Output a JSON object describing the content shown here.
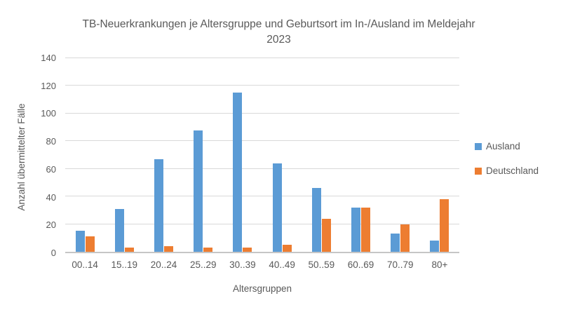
{
  "chart_data": {
    "type": "bar",
    "title": "TB-Neuerkrankungen je Altersgruppe und Geburtsort im In-/Ausland im Meldejahr 2023",
    "xlabel": "Altersgruppen",
    "ylabel": "Anzahl übermittelter Fälle",
    "ylim": [
      0,
      140
    ],
    "ytick_step": 20,
    "ytick_labels": [
      "0",
      "20",
      "40",
      "60",
      "80",
      "100",
      "120",
      "140"
    ],
    "grid": true,
    "legend_position": "right",
    "categories": [
      "00..14",
      "15..19",
      "20..24",
      "25..29",
      "30..39",
      "40..49",
      "50..59",
      "60..69",
      "70..79",
      "80+"
    ],
    "series": [
      {
        "name": "Ausland",
        "color": "#5B9BD5",
        "values": [
          15,
          31,
          67,
          88,
          115,
          64,
          46,
          32,
          13,
          8
        ]
      },
      {
        "name": "Deutschland",
        "color": "#ED7D31",
        "values": [
          11,
          3,
          4,
          3,
          3,
          5,
          24,
          32,
          20,
          38
        ]
      }
    ]
  },
  "colors": {
    "background": "#FFFFFF",
    "gridline": "#D9D9D9",
    "axis_line": "#C6C6C6",
    "text": "#595959",
    "series_ausland": "#5B9BD5",
    "series_deutschland": "#ED7D31"
  }
}
